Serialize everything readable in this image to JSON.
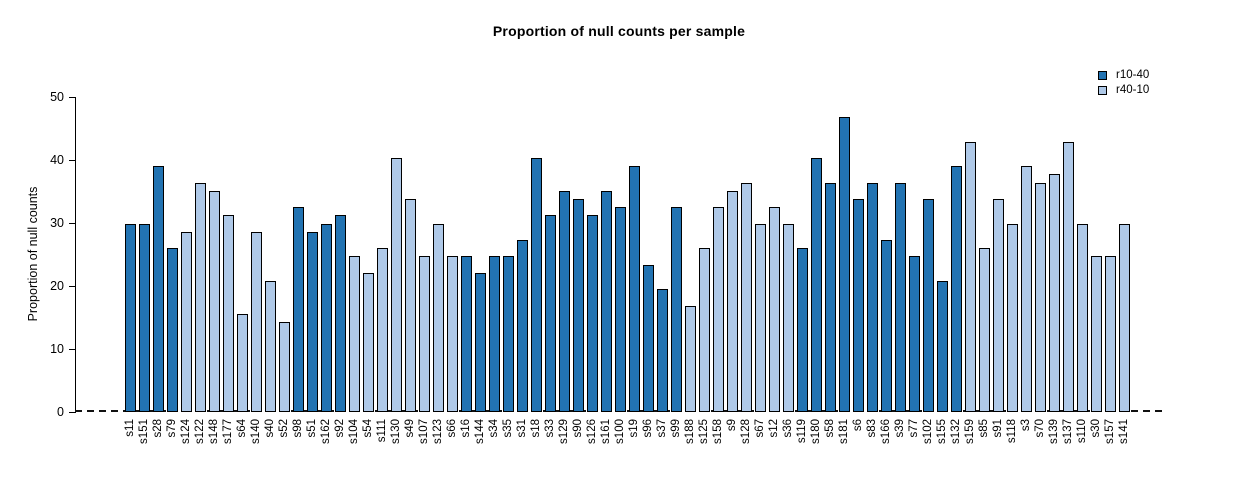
{
  "chart_data": {
    "type": "bar",
    "title": "Proportion of null counts per sample",
    "ylabel": "Proportion of null counts",
    "xlabel": "",
    "ylim": [
      0,
      50
    ],
    "yticks": [
      0,
      10,
      20,
      30,
      40,
      50
    ],
    "grid": false,
    "legend_position": "top-right",
    "zero_line_style": "dashed",
    "legend": [
      {
        "name": "r10-40",
        "color": "#2273B2"
      },
      {
        "name": "r40-10",
        "color": "#AFC9E8"
      }
    ],
    "colors": {
      "r10-40": "#2273B2",
      "r40-10": "#AFC9E8",
      "bar_border": "#000000"
    },
    "bars": [
      {
        "label": "s11",
        "value": 29.9,
        "series": "r10-40"
      },
      {
        "label": "s151",
        "value": 29.9,
        "series": "r10-40"
      },
      {
        "label": "s28",
        "value": 39.0,
        "series": "r10-40"
      },
      {
        "label": "s79",
        "value": 26.0,
        "series": "r10-40"
      },
      {
        "label": "s124",
        "value": 28.6,
        "series": "r40-10"
      },
      {
        "label": "s122",
        "value": 36.4,
        "series": "r40-10"
      },
      {
        "label": "s148",
        "value": 35.1,
        "series": "r40-10"
      },
      {
        "label": "s177",
        "value": 31.2,
        "series": "r40-10"
      },
      {
        "label": "s64",
        "value": 15.6,
        "series": "r40-10"
      },
      {
        "label": "s140",
        "value": 28.6,
        "series": "r40-10"
      },
      {
        "label": "s40",
        "value": 20.8,
        "series": "r40-10"
      },
      {
        "label": "s52",
        "value": 14.3,
        "series": "r40-10"
      },
      {
        "label": "s98",
        "value": 32.5,
        "series": "r10-40"
      },
      {
        "label": "s51",
        "value": 28.6,
        "series": "r10-40"
      },
      {
        "label": "s162",
        "value": 29.9,
        "series": "r10-40"
      },
      {
        "label": "s92",
        "value": 31.2,
        "series": "r10-40"
      },
      {
        "label": "s104",
        "value": 24.7,
        "series": "r40-10"
      },
      {
        "label": "s54",
        "value": 22.1,
        "series": "r40-10"
      },
      {
        "label": "s111",
        "value": 26.0,
        "series": "r40-10"
      },
      {
        "label": "s130",
        "value": 40.3,
        "series": "r40-10"
      },
      {
        "label": "s49",
        "value": 33.8,
        "series": "r40-10"
      },
      {
        "label": "s107",
        "value": 24.7,
        "series": "r40-10"
      },
      {
        "label": "s123",
        "value": 29.9,
        "series": "r40-10"
      },
      {
        "label": "s66",
        "value": 24.7,
        "series": "r40-10"
      },
      {
        "label": "s16",
        "value": 24.7,
        "series": "r10-40"
      },
      {
        "label": "s144",
        "value": 22.1,
        "series": "r10-40"
      },
      {
        "label": "s34",
        "value": 24.7,
        "series": "r10-40"
      },
      {
        "label": "s35",
        "value": 24.7,
        "series": "r10-40"
      },
      {
        "label": "s31",
        "value": 27.3,
        "series": "r10-40"
      },
      {
        "label": "s18",
        "value": 40.3,
        "series": "r10-40"
      },
      {
        "label": "s33",
        "value": 31.2,
        "series": "r10-40"
      },
      {
        "label": "s129",
        "value": 35.1,
        "series": "r10-40"
      },
      {
        "label": "s90",
        "value": 33.8,
        "series": "r10-40"
      },
      {
        "label": "s126",
        "value": 31.2,
        "series": "r10-40"
      },
      {
        "label": "s161",
        "value": 35.1,
        "series": "r10-40"
      },
      {
        "label": "s100",
        "value": 32.5,
        "series": "r10-40"
      },
      {
        "label": "s19",
        "value": 39.0,
        "series": "r10-40"
      },
      {
        "label": "s96",
        "value": 23.4,
        "series": "r10-40"
      },
      {
        "label": "s37",
        "value": 19.5,
        "series": "r10-40"
      },
      {
        "label": "s99",
        "value": 32.5,
        "series": "r10-40"
      },
      {
        "label": "s188",
        "value": 16.9,
        "series": "r40-10"
      },
      {
        "label": "s125",
        "value": 26.0,
        "series": "r40-10"
      },
      {
        "label": "s158",
        "value": 32.5,
        "series": "r40-10"
      },
      {
        "label": "s9",
        "value": 35.1,
        "series": "r40-10"
      },
      {
        "label": "s128",
        "value": 36.4,
        "series": "r40-10"
      },
      {
        "label": "s67",
        "value": 29.9,
        "series": "r40-10"
      },
      {
        "label": "s12",
        "value": 32.5,
        "series": "r40-10"
      },
      {
        "label": "s36",
        "value": 29.9,
        "series": "r40-10"
      },
      {
        "label": "s119",
        "value": 26.0,
        "series": "r10-40"
      },
      {
        "label": "s180",
        "value": 40.3,
        "series": "r10-40"
      },
      {
        "label": "s58",
        "value": 36.4,
        "series": "r10-40"
      },
      {
        "label": "s181",
        "value": 46.8,
        "series": "r10-40"
      },
      {
        "label": "s6",
        "value": 33.8,
        "series": "r10-40"
      },
      {
        "label": "s83",
        "value": 36.4,
        "series": "r10-40"
      },
      {
        "label": "s166",
        "value": 27.3,
        "series": "r10-40"
      },
      {
        "label": "s39",
        "value": 36.4,
        "series": "r10-40"
      },
      {
        "label": "s77",
        "value": 24.7,
        "series": "r10-40"
      },
      {
        "label": "s102",
        "value": 33.8,
        "series": "r10-40"
      },
      {
        "label": "s155",
        "value": 20.8,
        "series": "r10-40"
      },
      {
        "label": "s132",
        "value": 39.0,
        "series": "r10-40"
      },
      {
        "label": "s159",
        "value": 42.9,
        "series": "r40-10"
      },
      {
        "label": "s85",
        "value": 26.0,
        "series": "r40-10"
      },
      {
        "label": "s91",
        "value": 33.8,
        "series": "r40-10"
      },
      {
        "label": "s118",
        "value": 29.9,
        "series": "r40-10"
      },
      {
        "label": "s3",
        "value": 39.0,
        "series": "r40-10"
      },
      {
        "label": "s70",
        "value": 36.4,
        "series": "r40-10"
      },
      {
        "label": "s139",
        "value": 37.7,
        "series": "r40-10"
      },
      {
        "label": "s137",
        "value": 42.9,
        "series": "r40-10"
      },
      {
        "label": "s110",
        "value": 29.9,
        "series": "r40-10"
      },
      {
        "label": "s30",
        "value": 24.7,
        "series": "r40-10"
      },
      {
        "label": "s157",
        "value": 24.7,
        "series": "r40-10"
      },
      {
        "label": "s141",
        "value": 29.9,
        "series": "r40-10"
      }
    ]
  }
}
